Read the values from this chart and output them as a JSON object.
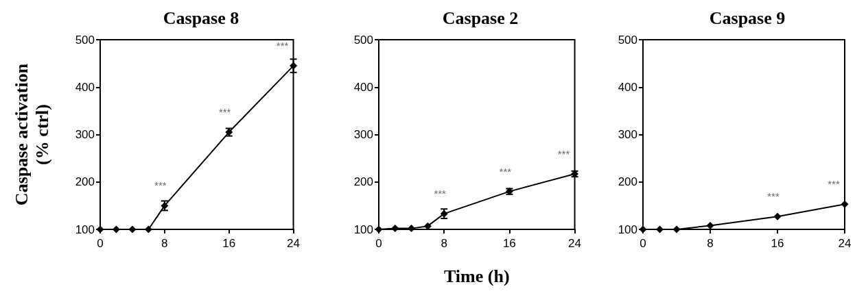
{
  "chart_data": [
    {
      "type": "line",
      "title": "Caspase 8",
      "ylabel": "Caspase activation\n(% ctrl)",
      "x": [
        0,
        2,
        4,
        6,
        8,
        16,
        24
      ],
      "series": [
        {
          "color": "#000000",
          "values": [
            100,
            100,
            100,
            100,
            150,
            305,
            445
          ],
          "errors": [
            null,
            null,
            null,
            null,
            10,
            8,
            14
          ]
        }
      ],
      "xlim": [
        0,
        24
      ],
      "xticks": [
        0,
        8,
        16,
        24
      ],
      "ylim": [
        100,
        500
      ],
      "yticks": [
        100,
        200,
        300,
        400,
        500
      ],
      "marker": "diamond",
      "line_style": "solid",
      "annotations": [
        {
          "text": "***",
          "x": 8,
          "y": 150
        },
        {
          "text": "***",
          "x": 16,
          "y": 305
        },
        {
          "text": "***",
          "x": 24,
          "y": 445
        }
      ]
    },
    {
      "type": "line",
      "title": "Caspase 2",
      "xlabel": "Time (h)",
      "x": [
        0,
        2,
        4,
        6,
        8,
        16,
        24
      ],
      "series": [
        {
          "color": "#000000",
          "values": [
            100,
            102,
            102,
            107,
            133,
            180,
            217
          ],
          "errors": [
            null,
            null,
            null,
            null,
            10,
            6,
            6
          ]
        }
      ],
      "xlim": [
        0,
        24
      ],
      "xticks": [
        0,
        8,
        16,
        24
      ],
      "ylim": [
        100,
        500
      ],
      "yticks": [
        100,
        200,
        300,
        400,
        500
      ],
      "marker": "diamond",
      "line_style": "solid",
      "annotations": [
        {
          "text": "***",
          "x": 8,
          "y": 133
        },
        {
          "text": "***",
          "x": 16,
          "y": 180
        },
        {
          "text": "***",
          "x": 24,
          "y": 217
        }
      ]
    },
    {
      "type": "line",
      "title": "Caspase 9",
      "x": [
        0,
        2,
        4,
        8,
        16,
        24
      ],
      "series": [
        {
          "color": "#000000",
          "values": [
            100,
            100,
            100,
            108,
            127,
            153
          ]
        }
      ],
      "xlim": [
        0,
        24
      ],
      "xticks": [
        0,
        8,
        16,
        24
      ],
      "ylim": [
        100,
        500
      ],
      "yticks": [
        100,
        200,
        300,
        400,
        500
      ],
      "marker": "diamond",
      "line_style": "solid",
      "annotations": [
        {
          "text": "***",
          "x": 16,
          "y": 127
        },
        {
          "text": "***",
          "x": 24,
          "y": 153
        }
      ]
    }
  ]
}
